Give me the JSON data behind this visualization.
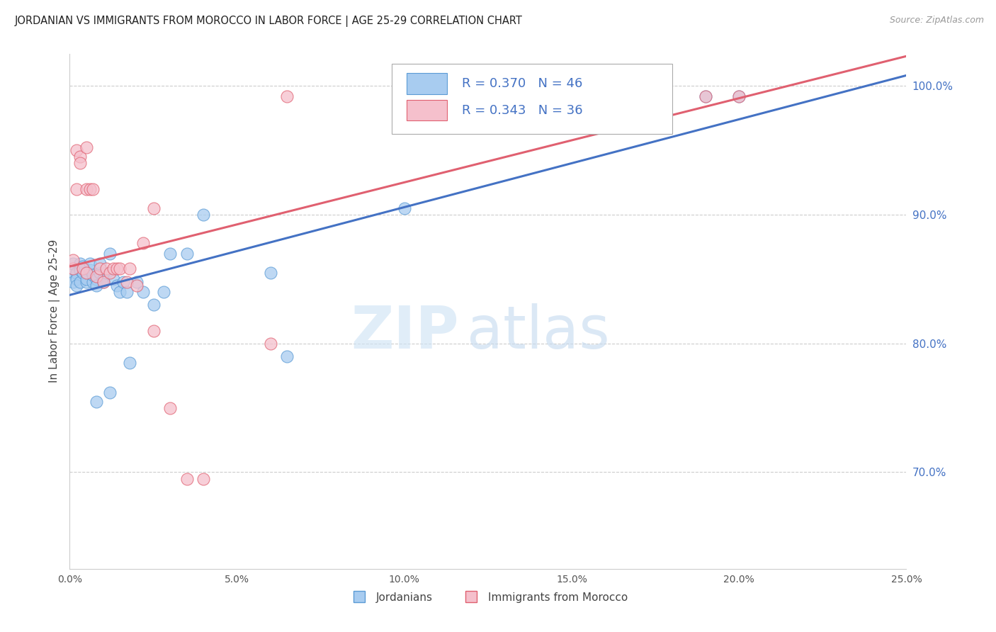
{
  "title": "JORDANIAN VS IMMIGRANTS FROM MOROCCO IN LABOR FORCE | AGE 25-29 CORRELATION CHART",
  "source": "Source: ZipAtlas.com",
  "ylabel": "In Labor Force | Age 25-29",
  "xmin": 0.0,
  "xmax": 0.25,
  "ymin": 0.625,
  "ymax": 1.025,
  "yticks": [
    0.7,
    0.8,
    0.9,
    1.0
  ],
  "xticks": [
    0.0,
    0.05,
    0.1,
    0.15,
    0.2,
    0.25
  ],
  "blue_R": 0.37,
  "blue_N": 46,
  "pink_R": 0.343,
  "pink_N": 36,
  "blue_face": "#A8CCF0",
  "blue_edge": "#5B9BD5",
  "pink_face": "#F5C0CC",
  "pink_edge": "#E06070",
  "blue_line": "#4472C4",
  "pink_line": "#E06070",
  "legend_text_color": "#4472C4",
  "blue_label": "Jordanians",
  "pink_label": "Immigrants from Morocco",
  "blue_x": [
    0.001,
    0.001,
    0.001,
    0.002,
    0.002,
    0.002,
    0.003,
    0.003,
    0.003,
    0.004,
    0.004,
    0.005,
    0.005,
    0.005,
    0.006,
    0.006,
    0.007,
    0.007,
    0.008,
    0.008,
    0.009,
    0.009,
    0.01,
    0.01,
    0.011,
    0.012,
    0.013,
    0.014,
    0.015,
    0.016,
    0.017,
    0.018,
    0.02,
    0.022,
    0.025,
    0.028,
    0.03,
    0.035,
    0.04,
    0.06,
    0.065,
    0.1,
    0.19,
    0.2,
    0.008,
    0.012
  ],
  "blue_y": [
    0.855,
    0.862,
    0.848,
    0.855,
    0.85,
    0.845,
    0.857,
    0.862,
    0.848,
    0.855,
    0.86,
    0.848,
    0.855,
    0.85,
    0.857,
    0.862,
    0.848,
    0.853,
    0.85,
    0.845,
    0.855,
    0.862,
    0.85,
    0.848,
    0.855,
    0.87,
    0.85,
    0.845,
    0.84,
    0.848,
    0.84,
    0.785,
    0.848,
    0.84,
    0.83,
    0.84,
    0.87,
    0.87,
    0.9,
    0.855,
    0.79,
    0.905,
    0.992,
    0.992,
    0.755,
    0.762
  ],
  "pink_x": [
    0.001,
    0.001,
    0.002,
    0.002,
    0.003,
    0.003,
    0.004,
    0.005,
    0.005,
    0.006,
    0.007,
    0.008,
    0.009,
    0.01,
    0.011,
    0.012,
    0.013,
    0.014,
    0.015,
    0.017,
    0.018,
    0.02,
    0.022,
    0.025,
    0.03,
    0.035,
    0.04,
    0.06,
    0.065,
    0.1,
    0.13,
    0.16,
    0.19,
    0.2,
    0.005,
    0.025
  ],
  "pink_y": [
    0.858,
    0.865,
    0.92,
    0.95,
    0.945,
    0.94,
    0.858,
    0.855,
    0.92,
    0.92,
    0.92,
    0.852,
    0.858,
    0.848,
    0.858,
    0.855,
    0.858,
    0.858,
    0.858,
    0.848,
    0.858,
    0.845,
    0.878,
    0.905,
    0.75,
    0.695,
    0.695,
    0.8,
    0.992,
    0.992,
    0.992,
    0.992,
    0.992,
    0.992,
    0.952,
    0.81
  ]
}
